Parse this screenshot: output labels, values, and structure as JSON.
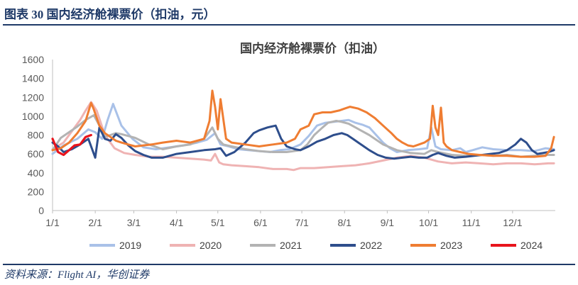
{
  "figure": {
    "title": "图表 30  国内经济舱裸票价（扣油，元）",
    "source": "资料来源：Flight AI，华创证券"
  },
  "colors": {
    "2019": "#a9c1e8",
    "2020": "#efb3b3",
    "2021": "#b3b3b3",
    "2022": "#2e4e8c",
    "2023": "#ef7d32",
    "2024": "#e8141c",
    "frame": "#1f3a68"
  },
  "chart_data": {
    "type": "line",
    "title": "国内经济舱裸票价（扣油）",
    "xlabel": "",
    "ylabel": "",
    "xlim": [
      0,
      365
    ],
    "ylim": [
      0,
      1600
    ],
    "yticks": [
      0,
      200,
      400,
      600,
      800,
      1000,
      1200,
      1400,
      1600
    ],
    "xticks": [
      {
        "day": 0,
        "label": "1/1"
      },
      {
        "day": 31,
        "label": "2/1"
      },
      {
        "day": 59,
        "label": "3/1"
      },
      {
        "day": 90,
        "label": "4/1"
      },
      {
        "day": 120,
        "label": "5/1"
      },
      {
        "day": 151,
        "label": "6/1"
      },
      {
        "day": 181,
        "label": "7/1"
      },
      {
        "day": 212,
        "label": "8/1"
      },
      {
        "day": 243,
        "label": "9/1"
      },
      {
        "day": 273,
        "label": "10/1"
      },
      {
        "day": 304,
        "label": "11/1"
      },
      {
        "day": 334,
        "label": "12/1"
      }
    ],
    "legend_position": "bottom",
    "series": [
      {
        "name": "2019",
        "x": [
          0,
          8,
          18,
          26,
          31,
          36,
          40,
          44,
          50,
          58,
          66,
          75,
          85,
          95,
          105,
          112,
          118,
          122,
          128,
          135,
          142,
          150,
          158,
          165,
          172,
          180,
          186,
          192,
          198,
          204,
          210,
          215,
          220,
          225,
          230,
          235,
          240,
          245,
          250,
          258,
          266,
          272,
          275,
          278,
          282,
          290,
          296,
          300,
          305,
          312,
          320,
          330,
          340,
          350,
          358,
          364
        ],
        "y": [
          600,
          690,
          760,
          860,
          830,
          760,
          960,
          1130,
          900,
          760,
          670,
          650,
          670,
          690,
          720,
          750,
          820,
          700,
          680,
          650,
          640,
          630,
          620,
          640,
          650,
          700,
          790,
          900,
          930,
          940,
          950,
          960,
          930,
          910,
          880,
          800,
          720,
          660,
          620,
          640,
          650,
          660,
          880,
          680,
          650,
          640,
          660,
          620,
          640,
          670,
          650,
          640,
          640,
          630,
          660,
          650
        ]
      },
      {
        "name": "2020",
        "x": [
          0,
          8,
          14,
          20,
          24,
          28,
          32,
          38,
          45,
          52,
          60,
          70,
          80,
          90,
          100,
          110,
          115,
          118,
          121,
          124,
          130,
          140,
          150,
          160,
          170,
          175,
          180,
          190,
          200,
          210,
          220,
          230,
          240,
          250,
          260,
          270,
          280,
          290,
          300,
          310,
          320,
          330,
          340,
          350,
          360,
          364
        ],
        "y": [
          650,
          720,
          840,
          960,
          1060,
          1150,
          1060,
          800,
          660,
          610,
          590,
          570,
          570,
          560,
          550,
          540,
          530,
          600,
          510,
          490,
          480,
          470,
          460,
          440,
          440,
          430,
          450,
          450,
          460,
          470,
          480,
          500,
          530,
          560,
          580,
          560,
          520,
          500,
          510,
          500,
          490,
          500,
          500,
          490,
          500,
          500
        ]
      },
      {
        "name": "2021",
        "x": [
          0,
          6,
          12,
          18,
          24,
          30,
          34,
          38,
          42,
          46,
          50,
          55,
          60,
          70,
          80,
          90,
          100,
          110,
          116,
          120,
          124,
          130,
          140,
          150,
          160,
          170,
          180,
          185,
          190,
          196,
          200,
          206,
          210,
          215,
          220,
          225,
          230,
          240,
          250,
          260,
          270,
          275,
          280,
          290,
          300,
          310,
          320,
          330,
          340,
          350,
          360,
          364
        ],
        "y": [
          640,
          770,
          830,
          890,
          960,
          1010,
          900,
          780,
          800,
          820,
          810,
          790,
          770,
          700,
          650,
          680,
          700,
          760,
          880,
          760,
          700,
          680,
          650,
          630,
          620,
          620,
          640,
          700,
          800,
          880,
          930,
          950,
          940,
          920,
          880,
          840,
          800,
          700,
          640,
          610,
          600,
          640,
          620,
          590,
          580,
          590,
          580,
          590,
          570,
          580,
          590,
          590
        ]
      },
      {
        "name": "2022",
        "x": [
          0,
          4,
          8,
          14,
          20,
          26,
          31,
          34,
          38,
          42,
          46,
          50,
          55,
          60,
          66,
          72,
          80,
          90,
          100,
          110,
          118,
          122,
          126,
          132,
          140,
          146,
          150,
          156,
          162,
          166,
          170,
          176,
          180,
          186,
          192,
          198,
          204,
          210,
          214,
          218,
          222,
          226,
          230,
          236,
          242,
          248,
          254,
          260,
          266,
          272,
          276,
          280,
          286,
          292,
          300,
          306,
          312,
          318,
          324,
          330,
          336,
          340,
          344,
          348,
          352,
          356,
          360,
          364
        ],
        "y": [
          720,
          680,
          620,
          650,
          700,
          760,
          560,
          880,
          760,
          740,
          810,
          770,
          690,
          630,
          590,
          560,
          560,
          600,
          620,
          640,
          650,
          660,
          580,
          620,
          720,
          820,
          850,
          880,
          900,
          760,
          680,
          650,
          640,
          680,
          730,
          760,
          800,
          820,
          800,
          760,
          720,
          680,
          640,
          590,
          560,
          550,
          560,
          570,
          560,
          560,
          590,
          610,
          580,
          560,
          570,
          580,
          590,
          600,
          610,
          640,
          700,
          760,
          720,
          640,
          600,
          610,
          620,
          640
        ]
      },
      {
        "name": "2023",
        "x": [
          0,
          6,
          12,
          18,
          24,
          28,
          30,
          34,
          38,
          42,
          46,
          50,
          55,
          60,
          66,
          72,
          80,
          90,
          100,
          110,
          114,
          116,
          118,
          120,
          122,
          126,
          130,
          140,
          150,
          160,
          170,
          176,
          180,
          186,
          190,
          196,
          202,
          208,
          212,
          216,
          222,
          228,
          234,
          240,
          246,
          250,
          254,
          258,
          262,
          266,
          270,
          274,
          276,
          278,
          280,
          282,
          284,
          286,
          290,
          296,
          302,
          310,
          320,
          330,
          340,
          350,
          358,
          362,
          364
        ],
        "y": [
          640,
          660,
          720,
          820,
          950,
          1140,
          1070,
          900,
          820,
          780,
          740,
          720,
          700,
          680,
          690,
          700,
          720,
          740,
          720,
          760,
          950,
          1270,
          1100,
          860,
          1180,
          760,
          720,
          700,
          680,
          700,
          720,
          760,
          860,
          900,
          1020,
          1040,
          1040,
          1060,
          1080,
          1100,
          1080,
          1040,
          980,
          900,
          820,
          760,
          720,
          690,
          680,
          700,
          720,
          760,
          1110,
          880,
          800,
          1090,
          720,
          680,
          640,
          620,
          600,
          590,
          580,
          580,
          570,
          570,
          580,
          660,
          780
        ]
      },
      {
        "name": "2024",
        "x": [
          0,
          4,
          8,
          12,
          16,
          20,
          24,
          28
        ],
        "y": [
          760,
          620,
          590,
          640,
          690,
          700,
          780,
          800
        ]
      }
    ]
  }
}
